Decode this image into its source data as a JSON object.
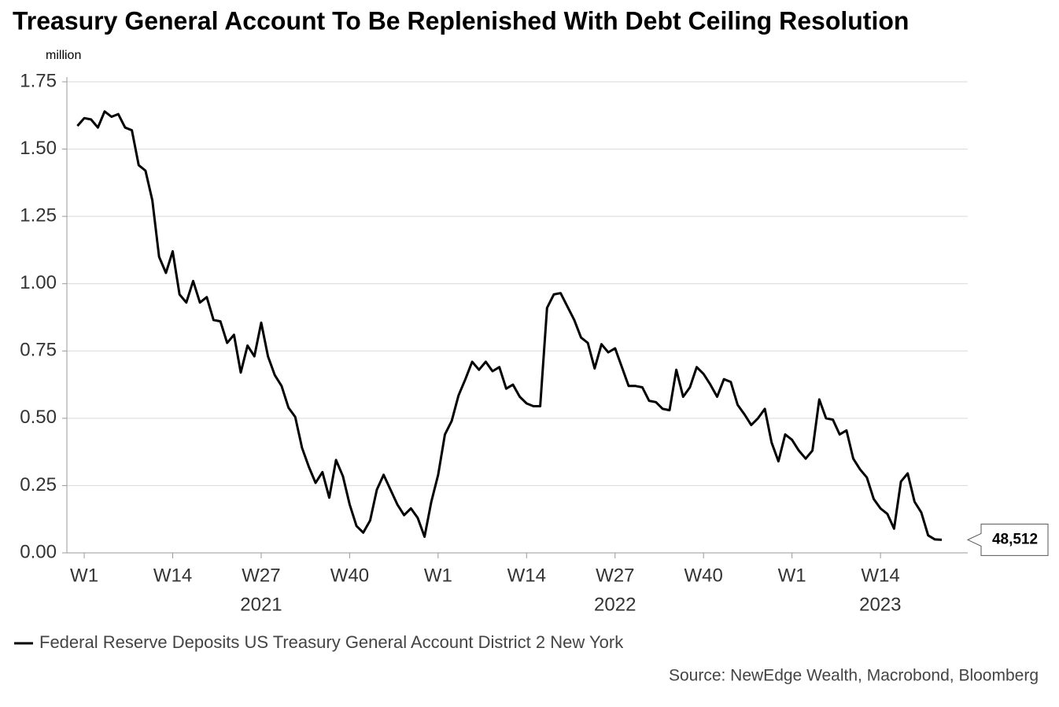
{
  "chart_data": {
    "type": "line",
    "title": "Treasury General Account To Be Replenished With Debt Ceiling Resolution",
    "y_unit": "million",
    "source": "Source: NewEdge Wealth, Macrobond, Bloomberg",
    "categories": [
      null,
      "W1",
      null,
      null,
      null,
      null,
      null,
      null,
      null,
      null,
      null,
      null,
      null,
      null,
      "W14",
      null,
      null,
      null,
      null,
      null,
      null,
      null,
      null,
      null,
      null,
      null,
      null,
      "W27",
      null,
      null,
      null,
      null,
      null,
      null,
      null,
      null,
      null,
      null,
      null,
      null,
      "W40",
      null,
      null,
      null,
      null,
      null,
      null,
      null,
      null,
      null,
      null,
      null,
      null,
      "W1",
      null,
      null,
      null,
      null,
      null,
      null,
      null,
      null,
      null,
      null,
      null,
      null,
      "W14",
      null,
      null,
      null,
      null,
      null,
      null,
      null,
      null,
      null,
      null,
      null,
      null,
      "W27",
      null,
      null,
      null,
      null,
      null,
      null,
      null,
      null,
      null,
      null,
      null,
      null,
      "W40",
      null,
      null,
      null,
      null,
      null,
      null,
      null,
      null,
      null,
      null,
      null,
      null,
      "W1",
      null,
      null,
      null,
      null,
      null,
      null,
      null,
      null,
      null,
      null,
      null,
      null,
      "W14",
      null,
      null,
      null,
      null,
      null,
      null,
      null,
      null,
      null
    ],
    "years": [
      "2021",
      "2022",
      "2023"
    ],
    "series": [
      {
        "name": "Federal Reserve Deposits US Treasury General Account District 2 New York",
        "color": "#000000",
        "values": [
          1.586,
          1.615,
          1.61,
          1.58,
          1.64,
          1.62,
          1.63,
          1.58,
          1.57,
          1.44,
          1.42,
          1.31,
          1.1,
          1.04,
          1.12,
          0.96,
          0.93,
          1.01,
          0.93,
          0.95,
          0.865,
          0.86,
          0.78,
          0.81,
          0.67,
          0.77,
          0.73,
          0.855,
          0.73,
          0.66,
          0.62,
          0.54,
          0.505,
          0.39,
          0.32,
          0.26,
          0.3,
          0.205,
          0.345,
          0.285,
          0.18,
          0.1,
          0.075,
          0.12,
          0.235,
          0.29,
          0.235,
          0.18,
          0.14,
          0.165,
          0.13,
          0.06,
          0.19,
          0.29,
          0.44,
          0.49,
          0.585,
          0.645,
          0.71,
          0.68,
          0.71,
          0.675,
          0.69,
          0.61,
          0.625,
          0.58,
          0.555,
          0.545,
          0.545,
          0.91,
          0.96,
          0.965,
          0.915,
          0.865,
          0.8,
          0.78,
          0.685,
          0.775,
          0.745,
          0.76,
          0.69,
          0.62,
          0.62,
          0.615,
          0.565,
          0.56,
          0.535,
          0.53,
          0.68,
          0.58,
          0.615,
          0.69,
          0.665,
          0.625,
          0.58,
          0.645,
          0.635,
          0.55,
          0.515,
          0.475,
          0.5,
          0.535,
          0.41,
          0.34,
          0.44,
          0.42,
          0.38,
          0.35,
          0.38,
          0.57,
          0.5,
          0.495,
          0.44,
          0.455,
          0.35,
          0.31,
          0.28,
          0.2,
          0.165,
          0.145,
          0.09,
          0.265,
          0.295,
          0.19,
          0.15,
          0.065,
          0.05,
          0.048512
        ],
        "value_labels": [
          null,
          null,
          null,
          null,
          null,
          null,
          null,
          null,
          null,
          null,
          null,
          null,
          null,
          null,
          null,
          null,
          null,
          null,
          null,
          null,
          null,
          null,
          null,
          null,
          null,
          null,
          null,
          null,
          null,
          null,
          null,
          null,
          null,
          null,
          null,
          null,
          null,
          null,
          null,
          null,
          null,
          null,
          null,
          null,
          null,
          null,
          null,
          null,
          null,
          null,
          null,
          null,
          null,
          null,
          null,
          null,
          null,
          null,
          null,
          null,
          null,
          null,
          null,
          null,
          null,
          null,
          null,
          null,
          null,
          null,
          null,
          null,
          null,
          null,
          null,
          null,
          null,
          null,
          null,
          null,
          null,
          null,
          null,
          null,
          null,
          null,
          null,
          null,
          null,
          null,
          null,
          null,
          null,
          null,
          null,
          null,
          null,
          null,
          null,
          null,
          null,
          null,
          null,
          null,
          null,
          null,
          null,
          null,
          null,
          null,
          null,
          null,
          null,
          null,
          null,
          null,
          null,
          null,
          null,
          null,
          null,
          null,
          null,
          null,
          null,
          null,
          null,
          "48,512"
        ]
      }
    ],
    "ylim": [
      0,
      1.75
    ],
    "yticks": [
      {
        "value": 0,
        "label": "0.00"
      },
      {
        "value": 0.25,
        "label": "0.25"
      },
      {
        "value": 0.5,
        "label": "0.50"
      },
      {
        "value": 0.75,
        "label": "0.75"
      },
      {
        "value": 1,
        "label": "1.00"
      },
      {
        "value": 1.25,
        "label": "1.25"
      },
      {
        "value": 1.5,
        "label": "1.50"
      },
      {
        "value": 1.75,
        "label": "1.75"
      }
    ],
    "grid": true
  }
}
